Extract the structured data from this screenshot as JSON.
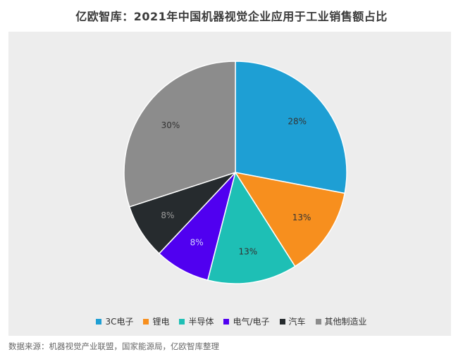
{
  "chart_data": {
    "type": "pie",
    "title": "亿欧智库：2021年中国机器视觉企业应用于工业销售额占比",
    "categories": [
      "3C电子",
      "锂电",
      "半导体",
      "电气/电子",
      "汽车",
      "其他制造业"
    ],
    "values": [
      28,
      13,
      13,
      8,
      8,
      30
    ],
    "value_labels": [
      "28%",
      "13%",
      "13%",
      "8%",
      "8%",
      "30%"
    ],
    "colors": [
      "#1e9fd4",
      "#f78f1e",
      "#1ebfb5",
      "#5000f0",
      "#262b2e",
      "#8c8c8c"
    ],
    "label_colors": [
      "#333333",
      "#333333",
      "#333333",
      "#d0d0ff",
      "#9a9a9a",
      "#333333"
    ],
    "legend_position": "bottom"
  },
  "source_text": "数据来源：机器视觉产业联盟，国家能源局，亿欧智库整理"
}
